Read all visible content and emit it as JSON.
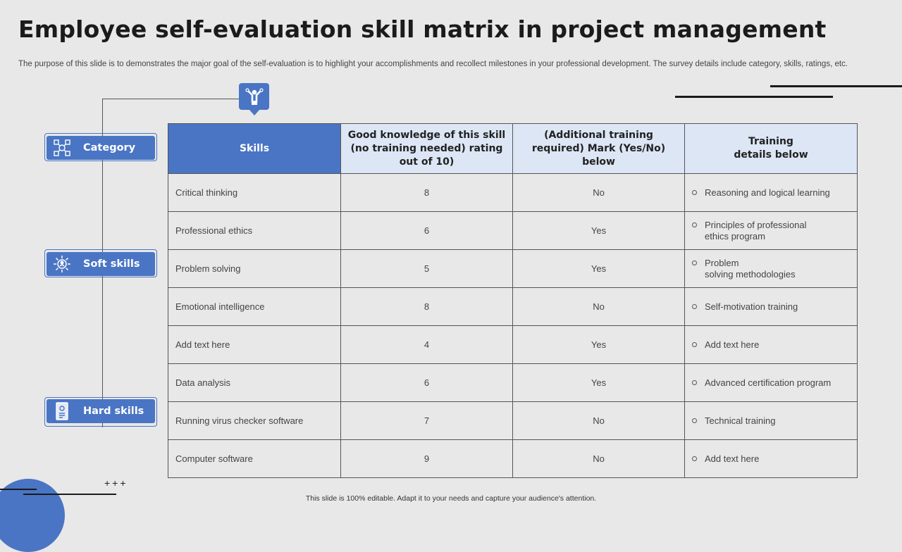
{
  "title": "Employee self-evaluation skill matrix in project management",
  "subtitle": "The purpose of this slide is to demonstrates the major goal of the self-evaluation is to highlight your accomplishments and recollect milestones in your professional development. The survey details include category, skills, ratings, etc.",
  "sidebar": {
    "category": {
      "label": "Category",
      "icon": "network-icon"
    },
    "soft_skills": {
      "label": "Soft skills",
      "icon": "sun-person-icon"
    },
    "hard_skills": {
      "label": "Hard skills",
      "icon": "certificate-icon"
    }
  },
  "top_icon": "achiever-icon",
  "table": {
    "headers": [
      "Skills",
      "Good knowledge of this skill (no training needed) rating out of 10)",
      "(Additional training required) Mark (Yes/No) below",
      "Training\ndetails below"
    ],
    "rows": [
      {
        "skill": "Critical thinking",
        "rating": "8",
        "training_required": "No",
        "details": "Reasoning  and logical learning"
      },
      {
        "skill": "Professional  ethics",
        "rating": "6",
        "training_required": "Yes",
        "details": "Principles of professional\nethics program"
      },
      {
        "skill": "Problem  solving",
        "rating": "5",
        "training_required": "Yes",
        "details": "Problem\nsolving  methodologies"
      },
      {
        "skill": "Emotional  intelligence",
        "rating": "8",
        "training_required": "No",
        "details": "Self-motivation  training"
      },
      {
        "skill": "Add text here",
        "rating": "4",
        "training_required": "Yes",
        "details": "Add text here"
      },
      {
        "skill": "Data  analysis",
        "rating": "6",
        "training_required": "Yes",
        "details": "Advanced  certification program"
      },
      {
        "skill": "Running  virus checker software",
        "rating": "7",
        "training_required": "No",
        "details": "Technical  training"
      },
      {
        "skill": "Computer  software",
        "rating": "9",
        "training_required": "No",
        "details": "Add text here"
      }
    ]
  },
  "footer": "This slide is 100% editable.  Adapt it to your needs and capture your audience's attention.",
  "stars": "+++",
  "colors": {
    "accent": "#4a75c4",
    "header_fill": "#dce6f5",
    "background": "#e8e8e8"
  }
}
